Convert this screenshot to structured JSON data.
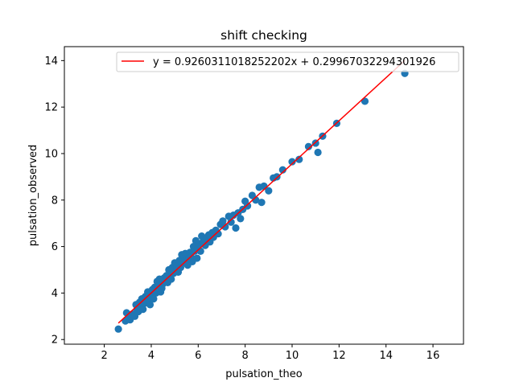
{
  "chart_data": {
    "type": "scatter",
    "title": "shift checking",
    "xlabel": "pulsation_theo",
    "ylabel": "pulsation_observed",
    "xlim": [
      0.3,
      17.3
    ],
    "ylim": [
      1.8,
      14.6
    ],
    "xticks": [
      2,
      4,
      6,
      8,
      10,
      12,
      14,
      16
    ],
    "yticks": [
      2,
      4,
      6,
      8,
      10,
      12,
      14
    ],
    "grid": false,
    "legend_position": "top-right",
    "point_color": "#1f77b4",
    "fit_color": "#ff0000",
    "series": [
      {
        "type": "scatter",
        "points": [
          [
            2.6,
            2.45
          ],
          [
            2.9,
            2.8
          ],
          [
            2.95,
            3.15
          ],
          [
            3.0,
            2.9
          ],
          [
            3.1,
            2.85
          ],
          [
            3.15,
            3.0
          ],
          [
            3.2,
            3.1
          ],
          [
            3.3,
            3.0
          ],
          [
            3.35,
            3.5
          ],
          [
            3.4,
            3.3
          ],
          [
            3.45,
            3.2
          ],
          [
            3.5,
            3.6
          ],
          [
            3.55,
            3.4
          ],
          [
            3.6,
            3.75
          ],
          [
            3.65,
            3.3
          ],
          [
            3.7,
            3.55
          ],
          [
            3.75,
            3.85
          ],
          [
            3.8,
            3.6
          ],
          [
            3.85,
            4.05
          ],
          [
            3.9,
            3.75
          ],
          [
            3.95,
            3.5
          ],
          [
            4.0,
            3.9
          ],
          [
            4.05,
            4.15
          ],
          [
            4.1,
            3.75
          ],
          [
            4.15,
            4.25
          ],
          [
            4.2,
            4.0
          ],
          [
            4.25,
            4.5
          ],
          [
            4.3,
            4.3
          ],
          [
            4.35,
            4.6
          ],
          [
            4.4,
            4.05
          ],
          [
            4.45,
            4.2
          ],
          [
            4.5,
            4.4
          ],
          [
            4.55,
            4.65
          ],
          [
            4.6,
            4.5
          ],
          [
            4.65,
            4.75
          ],
          [
            4.7,
            4.45
          ],
          [
            4.75,
            5.0
          ],
          [
            4.8,
            4.7
          ],
          [
            4.85,
            4.6
          ],
          [
            4.9,
            5.1
          ],
          [
            4.95,
            4.85
          ],
          [
            5.0,
            5.3
          ],
          [
            5.05,
            4.95
          ],
          [
            5.1,
            5.15
          ],
          [
            5.15,
            4.9
          ],
          [
            5.2,
            5.4
          ],
          [
            5.25,
            5.1
          ],
          [
            5.3,
            5.65
          ],
          [
            5.35,
            5.3
          ],
          [
            5.4,
            5.6
          ],
          [
            5.45,
            5.7
          ],
          [
            5.5,
            5.4
          ],
          [
            5.55,
            5.2
          ],
          [
            5.6,
            5.5
          ],
          [
            5.65,
            5.75
          ],
          [
            5.7,
            5.55
          ],
          [
            5.75,
            5.35
          ],
          [
            5.8,
            6.0
          ],
          [
            5.85,
            5.8
          ],
          [
            5.9,
            6.25
          ],
          [
            5.95,
            5.5
          ],
          [
            6.0,
            5.9
          ],
          [
            6.05,
            6.1
          ],
          [
            6.1,
            5.8
          ],
          [
            6.15,
            6.45
          ],
          [
            6.2,
            6.2
          ],
          [
            6.3,
            6.05
          ],
          [
            6.35,
            6.35
          ],
          [
            6.45,
            6.5
          ],
          [
            6.5,
            6.2
          ],
          [
            6.6,
            6.6
          ],
          [
            6.65,
            6.4
          ],
          [
            6.75,
            6.7
          ],
          [
            6.85,
            6.55
          ],
          [
            6.95,
            6.95
          ],
          [
            7.05,
            7.1
          ],
          [
            7.15,
            6.85
          ],
          [
            7.3,
            7.3
          ],
          [
            7.4,
            7.05
          ],
          [
            7.5,
            7.35
          ],
          [
            7.6,
            6.8
          ],
          [
            7.7,
            7.45
          ],
          [
            7.8,
            7.2
          ],
          [
            7.9,
            7.6
          ],
          [
            8.0,
            7.95
          ],
          [
            8.1,
            7.75
          ],
          [
            8.3,
            8.2
          ],
          [
            8.45,
            8.0
          ],
          [
            8.6,
            8.55
          ],
          [
            8.7,
            7.9
          ],
          [
            8.8,
            8.6
          ],
          [
            9.0,
            8.4
          ],
          [
            9.2,
            8.95
          ],
          [
            9.35,
            9.0
          ],
          [
            9.6,
            9.3
          ],
          [
            10.0,
            9.65
          ],
          [
            10.3,
            9.75
          ],
          [
            10.7,
            10.3
          ],
          [
            11.0,
            10.45
          ],
          [
            11.1,
            10.05
          ],
          [
            11.3,
            10.75
          ],
          [
            11.9,
            11.3
          ],
          [
            13.1,
            12.25
          ],
          [
            14.8,
            13.45
          ]
        ]
      },
      {
        "type": "line",
        "name": "y = 0.9260311018252202x + 0.29967032294301926",
        "slope": 0.9260311018252202,
        "intercept": 0.29967032294301926,
        "x_range": [
          2.6,
          14.8
        ]
      }
    ]
  }
}
